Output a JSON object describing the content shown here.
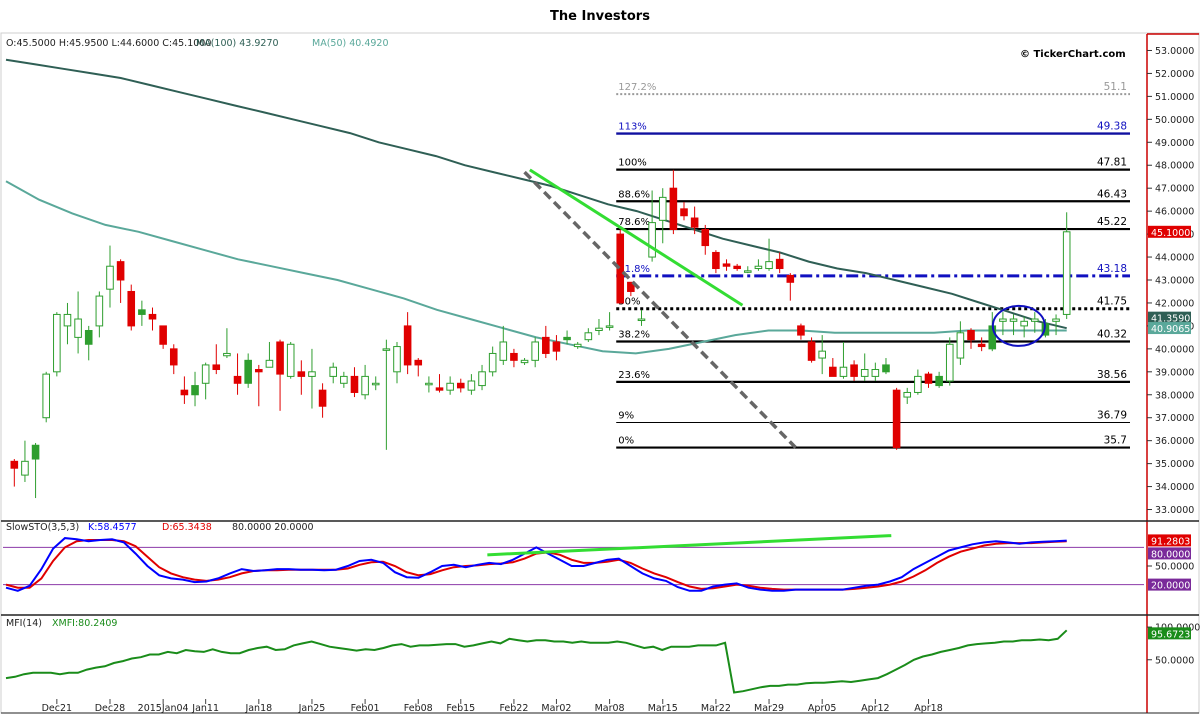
{
  "title": "The Investors",
  "header": {
    "ohlc": "O:45.5000  H:45.9500  L:44.6000  C:45.1000",
    "ma100": "MA(100) 43.9270",
    "ma50": "MA(50) 40.4920",
    "watermark": "© TickerChart.com"
  },
  "colors": {
    "up": "#2e9e2e",
    "down": "#e00000",
    "ma100": "#2f5f55",
    "ma50": "#5aa89a",
    "stoch_k": "#0000ff",
    "stoch_d": "#e00000",
    "mfi": "#1a8c1a",
    "axis_red": "#cc0000",
    "fib_blue": "#1010c0",
    "trend_green": "#33dd33",
    "trend_grey": "#666666"
  },
  "chart_data": [
    {
      "type": "candlestick",
      "id": "price",
      "ylim": [
        32.5,
        53.5
      ],
      "y_ticks": [
        "53.0000",
        "52.0000",
        "51.0000",
        "50.0000",
        "49.0000",
        "48.0000",
        "47.0000",
        "46.0000",
        "45.0000",
        "44.0000",
        "43.0000",
        "42.0000",
        "41.0000",
        "40.0000",
        "39.0000",
        "38.0000",
        "37.0000",
        "36.0000",
        "35.0000",
        "34.0000",
        "33.0000"
      ],
      "x_labels": [
        {
          "i": 4,
          "label": "Dec21"
        },
        {
          "i": 9,
          "label": "Dec28"
        },
        {
          "i": 14,
          "label": "2015Jan04"
        },
        {
          "i": 18,
          "label": "Jan11"
        },
        {
          "i": 23,
          "label": "Jan18"
        },
        {
          "i": 28,
          "label": "Jan25"
        },
        {
          "i": 33,
          "label": "Feb01"
        },
        {
          "i": 38,
          "label": "Feb08"
        },
        {
          "i": 42,
          "label": "Feb15"
        },
        {
          "i": 47,
          "label": "Feb22"
        },
        {
          "i": 51,
          "label": "Mar02"
        },
        {
          "i": 56,
          "label": "Mar08"
        },
        {
          "i": 61,
          "label": "Mar15"
        },
        {
          "i": 66,
          "label": "Mar22"
        },
        {
          "i": 71,
          "label": "Mar29"
        },
        {
          "i": 76,
          "label": "Apr05"
        },
        {
          "i": 81,
          "label": "Apr12"
        },
        {
          "i": 86,
          "label": "Apr18"
        }
      ],
      "candles": [
        [
          35.1,
          34.8,
          35.2,
          34.0
        ],
        [
          34.5,
          35.1,
          36.0,
          34.2
        ],
        [
          35.2,
          35.8,
          35.9,
          33.5
        ],
        [
          37.0,
          38.9,
          39.0,
          36.8
        ],
        [
          39.0,
          41.5,
          41.6,
          38.8
        ],
        [
          41.0,
          41.5,
          42.0,
          40.2
        ],
        [
          40.5,
          41.3,
          42.5,
          39.8
        ],
        [
          40.2,
          40.8,
          41.0,
          39.5
        ],
        [
          41.0,
          42.3,
          42.5,
          40.5
        ],
        [
          42.6,
          43.6,
          44.5,
          41.8
        ],
        [
          43.8,
          43.0,
          43.9,
          42.0
        ],
        [
          42.5,
          41.0,
          42.8,
          40.8
        ],
        [
          41.5,
          41.7,
          42.1,
          41.0
        ],
        [
          41.5,
          41.3,
          41.8,
          40.8
        ],
        [
          41.0,
          40.2,
          41.0,
          40.0
        ],
        [
          40.0,
          39.3,
          40.2,
          38.9
        ],
        [
          38.2,
          38.0,
          38.8,
          37.6
        ],
        [
          38.0,
          38.4,
          39.0,
          37.5
        ],
        [
          38.5,
          39.3,
          39.4,
          37.8
        ],
        [
          39.3,
          39.1,
          40.2,
          38.9
        ],
        [
          39.7,
          39.8,
          40.9,
          39.6
        ],
        [
          38.8,
          38.5,
          39.8,
          38.0
        ],
        [
          38.5,
          39.5,
          39.8,
          38.3
        ],
        [
          39.1,
          39.0,
          39.3,
          37.5
        ],
        [
          39.2,
          39.5,
          40.3,
          39.2
        ],
        [
          40.3,
          38.9,
          40.4,
          37.3
        ],
        [
          38.8,
          40.2,
          40.3,
          38.7
        ],
        [
          39.0,
          38.8,
          39.5,
          38.0
        ],
        [
          38.8,
          39.0,
          40.0,
          37.4
        ],
        [
          38.2,
          37.5,
          38.5,
          37.0
        ],
        [
          38.8,
          39.2,
          39.4,
          38.5
        ],
        [
          38.5,
          38.8,
          39.0,
          38.3
        ],
        [
          38.8,
          38.1,
          39.2,
          37.9
        ],
        [
          38.0,
          38.8,
          39.3,
          37.8
        ],
        [
          38.5,
          38.5,
          38.8,
          38.2
        ],
        [
          40.0,
          40.0,
          40.4,
          35.6
        ],
        [
          39.0,
          40.1,
          40.3,
          38.5
        ],
        [
          41.0,
          39.3,
          41.6,
          38.9
        ],
        [
          39.5,
          39.3,
          39.6,
          38.8
        ],
        [
          38.5,
          38.5,
          38.8,
          38.1
        ],
        [
          38.3,
          38.2,
          38.9,
          38.1
        ],
        [
          38.2,
          38.5,
          38.8,
          38.0
        ],
        [
          38.5,
          38.3,
          38.7,
          38.1
        ],
        [
          38.2,
          38.6,
          38.9,
          38.0
        ],
        [
          38.4,
          39.0,
          39.3,
          38.2
        ],
        [
          39.0,
          39.8,
          40.1,
          38.8
        ],
        [
          39.5,
          40.3,
          41.0,
          39.3
        ],
        [
          39.8,
          39.5,
          40.0,
          39.2
        ],
        [
          39.4,
          39.5,
          39.6,
          39.3
        ],
        [
          39.5,
          40.3,
          40.5,
          39.2
        ],
        [
          40.5,
          39.8,
          41.0,
          39.6
        ],
        [
          40.3,
          39.9,
          40.6,
          39.5
        ],
        [
          40.4,
          40.5,
          40.8,
          40.2
        ],
        [
          40.1,
          40.2,
          40.3,
          40.0
        ],
        [
          40.4,
          40.7,
          40.9,
          40.3
        ],
        [
          40.8,
          40.9,
          41.3,
          40.6
        ],
        [
          41.0,
          41.0,
          41.6,
          40.8
        ],
        [
          45.0,
          42.0,
          45.2,
          42.0
        ],
        [
          42.9,
          42.5,
          42.9,
          42.3
        ],
        [
          41.3,
          41.3,
          41.7,
          41.0
        ],
        [
          44.0,
          45.5,
          46.9,
          43.8
        ],
        [
          45.6,
          46.6,
          47.0,
          44.6
        ],
        [
          47.0,
          45.2,
          47.8,
          45.0
        ],
        [
          46.1,
          45.8,
          46.4,
          45.6
        ],
        [
          45.7,
          45.3,
          46.2,
          45.0
        ],
        [
          45.2,
          44.5,
          45.4,
          44.1
        ],
        [
          44.2,
          43.5,
          44.3,
          43.3
        ],
        [
          43.7,
          43.6,
          43.9,
          43.4
        ],
        [
          43.6,
          43.5,
          43.7,
          43.4
        ],
        [
          43.4,
          43.4,
          43.6,
          43.3
        ],
        [
          43.5,
          43.6,
          43.9,
          43.4
        ],
        [
          43.5,
          43.8,
          44.8,
          43.4
        ],
        [
          43.9,
          43.5,
          44.2,
          43.3
        ],
        [
          43.2,
          42.9,
          43.3,
          42.1
        ],
        [
          41.0,
          40.6,
          41.1,
          40.4
        ],
        [
          40.3,
          39.5,
          40.5,
          39.4
        ],
        [
          39.6,
          39.9,
          40.6,
          38.9
        ],
        [
          39.2,
          38.8,
          39.6,
          38.8
        ],
        [
          38.8,
          39.2,
          40.3,
          38.7
        ],
        [
          39.3,
          38.8,
          39.5,
          38.6
        ],
        [
          38.8,
          39.1,
          39.8,
          38.6
        ],
        [
          38.8,
          39.1,
          39.4,
          38.6
        ],
        [
          39.0,
          39.3,
          39.6,
          38.9
        ],
        [
          38.2,
          35.7,
          38.3,
          35.6
        ],
        [
          37.9,
          38.1,
          38.3,
          37.6
        ],
        [
          38.1,
          38.8,
          39.1,
          38.0
        ],
        [
          38.9,
          38.5,
          39.0,
          38.3
        ],
        [
          38.4,
          38.8,
          39.0,
          38.3
        ],
        [
          38.6,
          40.2,
          40.5,
          38.4
        ],
        [
          39.6,
          40.7,
          41.2,
          39.3
        ],
        [
          40.8,
          40.4,
          40.9,
          40.0
        ],
        [
          40.2,
          40.1,
          40.5,
          39.9
        ],
        [
          40.0,
          41.0,
          41.6,
          39.9
        ],
        [
          41.2,
          41.3,
          41.6,
          40.6
        ],
        [
          41.2,
          41.3,
          41.5,
          40.6
        ],
        [
          41.0,
          41.2,
          41.4,
          40.5
        ],
        [
          41.2,
          41.3,
          41.6,
          40.7
        ],
        [
          40.6,
          41.1,
          41.3,
          40.5
        ],
        [
          41.2,
          41.3,
          41.5,
          40.6
        ],
        [
          41.5,
          45.1,
          45.95,
          41.3
        ]
      ],
      "ma100": [
        52.6,
        52.4,
        52.2,
        52.0,
        51.8,
        51.5,
        51.2,
        50.9,
        50.6,
        50.3,
        50.0,
        49.7,
        49.4,
        49.0,
        48.7,
        48.4,
        48.0,
        47.7,
        47.4,
        47.1,
        46.7,
        46.3,
        46.0,
        45.6,
        45.2,
        44.8,
        44.5,
        44.2,
        43.8,
        43.5,
        43.3,
        43.0,
        42.7,
        42.4,
        42.0,
        41.6,
        41.2,
        40.9
      ],
      "ma50": [
        47.3,
        46.5,
        45.9,
        45.4,
        45.1,
        44.7,
        44.3,
        43.9,
        43.6,
        43.3,
        43.0,
        42.6,
        42.2,
        41.7,
        41.3,
        40.9,
        40.5,
        40.2,
        39.9,
        39.8,
        40.0,
        40.3,
        40.6,
        40.8,
        40.8,
        40.7,
        40.7,
        40.7,
        40.7,
        40.8,
        40.8,
        40.8,
        40.8
      ],
      "fib_levels": [
        {
          "pct": "127.2%",
          "value": "51.1",
          "v": 51.1,
          "style": "dotted-grey"
        },
        {
          "pct": "113%",
          "value": "49.38",
          "v": 49.38,
          "style": "solid-blue"
        },
        {
          "pct": "100%",
          "value": "47.81",
          "v": 47.81,
          "style": "solid-black"
        },
        {
          "pct": "88.6%",
          "value": "46.43",
          "v": 46.43,
          "style": "solid-black"
        },
        {
          "pct": "78.6%",
          "value": "45.22",
          "v": 45.22,
          "style": "solid-black"
        },
        {
          "pct": "61.8%",
          "value": "43.18",
          "v": 43.18,
          "style": "dashdot-blue"
        },
        {
          "pct": "50%",
          "value": "41.75",
          "v": 41.75,
          "style": "dotted-black"
        },
        {
          "pct": "38.2%",
          "value": "40.32",
          "v": 40.32,
          "style": "solid-black"
        },
        {
          "pct": "23.6%",
          "value": "38.56",
          "v": 38.56,
          "style": "solid-black"
        },
        {
          "pct": "9%",
          "value": "36.79",
          "v": 36.79,
          "style": "thin-black"
        },
        {
          "pct": "0%",
          "value": "35.7",
          "v": 35.7,
          "style": "solid-black"
        }
      ],
      "trendlines": [
        {
          "name": "green",
          "from": [
            48.5,
            47.8
          ],
          "to": [
            68.5,
            41.9
          ]
        },
        {
          "name": "grey-dashed",
          "from": [
            48.0,
            47.7
          ],
          "to": [
            73.5,
            35.7
          ]
        }
      ],
      "price_badges": [
        {
          "label": "45.1000",
          "v": 45.1,
          "color": "#e00000"
        },
        {
          "label": "41.3590",
          "v": 41.359,
          "color": "#2f5f55"
        },
        {
          "label": "40.9065",
          "v": 40.9065,
          "color": "#5aa89a"
        }
      ]
    },
    {
      "type": "line",
      "id": "stoch",
      "header": "SlowSTO(3,5,3)",
      "k_label": "K:58.4577",
      "d_label": "D:65.3438",
      "levels_label": "80.0000  20.0000",
      "ylim": [
        0,
        100
      ],
      "y_ticks": [
        "50.0000"
      ],
      "levels": [
        80,
        20
      ],
      "k": [
        15,
        10,
        18,
        45,
        78,
        95,
        93,
        90,
        92,
        93,
        88,
        70,
        50,
        35,
        30,
        28,
        24,
        25,
        30,
        38,
        45,
        42,
        43,
        45,
        45,
        44,
        44,
        43,
        44,
        50,
        58,
        60,
        55,
        40,
        32,
        31,
        40,
        50,
        52,
        48,
        52,
        55,
        53,
        60,
        70,
        80,
        70,
        60,
        50,
        50,
        55,
        60,
        62,
        50,
        38,
        30,
        26,
        16,
        10,
        10,
        17,
        20,
        22,
        15,
        12,
        10,
        10,
        12,
        12,
        12,
        12,
        12,
        15,
        18,
        20,
        25,
        32,
        45,
        55,
        65,
        75,
        80,
        85,
        88,
        90,
        88,
        86,
        88,
        89,
        90,
        91
      ],
      "d": [
        20,
        15,
        15,
        30,
        58,
        80,
        90,
        92,
        92,
        92,
        90,
        82,
        65,
        48,
        38,
        32,
        28,
        26,
        28,
        32,
        38,
        42,
        43,
        43,
        44,
        44,
        44,
        44,
        44,
        46,
        52,
        56,
        57,
        50,
        40,
        35,
        37,
        43,
        48,
        50,
        51,
        53,
        54,
        56,
        62,
        70,
        72,
        68,
        60,
        55,
        55,
        57,
        60,
        55,
        46,
        38,
        32,
        24,
        17,
        13,
        14,
        17,
        20,
        18,
        15,
        13,
        12,
        12,
        12,
        12,
        12,
        12,
        13,
        15,
        17,
        20,
        25,
        33,
        43,
        55,
        65,
        73,
        78,
        83,
        86,
        87,
        87,
        87,
        88,
        89,
        90
      ],
      "last_k": "91.2803",
      "last_d": "80.0000",
      "low_label": "20.0000",
      "divergence": {
        "from": [
          44.5,
          68
        ],
        "to": [
          82.5,
          99
        ]
      }
    },
    {
      "type": "line",
      "id": "mfi",
      "header": "MFI(14)",
      "value_label": "XMFI:80.2409",
      "ylim": [
        -10,
        120
      ],
      "y_ticks": [
        "100.0000",
        "50.0000"
      ],
      "values": [
        22,
        24,
        28,
        30,
        30,
        30,
        28,
        30,
        30,
        35,
        38,
        40,
        45,
        48,
        52,
        54,
        58,
        58,
        62,
        60,
        65,
        63,
        62,
        66,
        62,
        60,
        60,
        65,
        68,
        70,
        65,
        66,
        72,
        75,
        78,
        74,
        70,
        68,
        66,
        64,
        66,
        65,
        68,
        72,
        74,
        70,
        72,
        72,
        73,
        74,
        74,
        70,
        72,
        75,
        78,
        75,
        82,
        80,
        78,
        80,
        80,
        78,
        78,
        76,
        78,
        76,
        76,
        76,
        78,
        76,
        72,
        68,
        70,
        65,
        70,
        70,
        70,
        72,
        72,
        72,
        76,
        0,
        2,
        5,
        8,
        10,
        10,
        12,
        12,
        14,
        15,
        15,
        16,
        17,
        16,
        18,
        20,
        22,
        28,
        35,
        42,
        50,
        55,
        58,
        62,
        65,
        68,
        72,
        74,
        75,
        76,
        78,
        78,
        80,
        80,
        81,
        80,
        82,
        95
      ],
      "last_label": "95.6723"
    }
  ]
}
